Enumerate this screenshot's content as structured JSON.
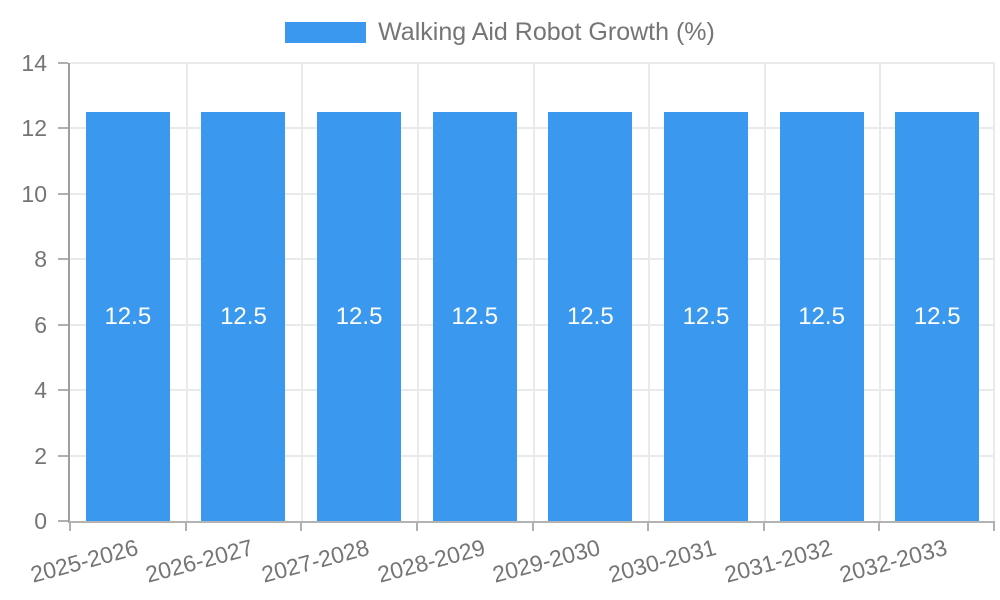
{
  "legend": {
    "label": "Walking Aid Robot Growth (%)"
  },
  "colors": {
    "bar": "#3a99ee",
    "bar_label": "#ffffff",
    "axis_label": "#757575",
    "grid": "#eaeaea",
    "y_axis_line": "#9e9e9e",
    "x_axis_line": "#b3b3b3",
    "tick": "#b0b0b0",
    "background": "#ffffff"
  },
  "chart_data": {
    "type": "bar",
    "title": "",
    "categories": [
      "2025-2026",
      "2026-2027",
      "2027-2028",
      "2028-2029",
      "2029-2030",
      "2030-2031",
      "2031-2032",
      "2032-2033"
    ],
    "series": [
      {
        "name": "Walking Aid Robot Growth (%)",
        "values": [
          12.5,
          12.5,
          12.5,
          12.5,
          12.5,
          12.5,
          12.5,
          12.5
        ]
      }
    ],
    "bar_labels": true,
    "xlabel": "",
    "ylabel": "",
    "ylim": [
      0,
      14
    ],
    "yticks": [
      0,
      2,
      4,
      6,
      8,
      10,
      12,
      14
    ],
    "grid": true,
    "legend_position": "top",
    "x_label_rotation_deg": -15
  }
}
